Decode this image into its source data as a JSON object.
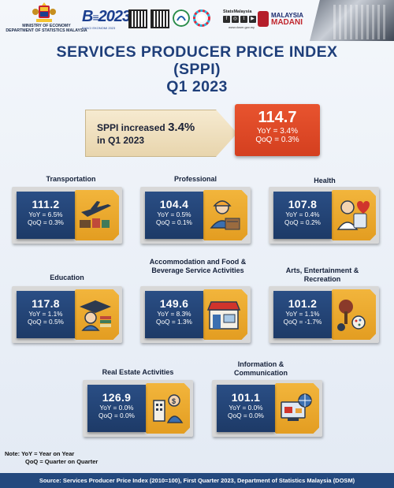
{
  "header": {
    "ministry_line1": "MINISTRY OF ECONOMY",
    "ministry_line2": "DEPARTMENT OF STATISTICS MALAYSIA",
    "banci_label": "2023",
    "banci_sub": "BANCI EKONOMI 2023",
    "statsmalaysia": "StatsMalaysia",
    "stats_url": "www.dosm.gov.my",
    "madani_top": "MALAYSIA",
    "madani_bottom": "MADANI"
  },
  "title": {
    "line1": "SERVICES PRODUCER PRICE INDEX",
    "line2": "(SPPI)",
    "line3": "Q1 2023"
  },
  "headline": {
    "text_prefix": "SPPI increased",
    "text_value": "3.4%",
    "text_suffix": "in Q1 2023",
    "index": "114.7",
    "yoy": "YoY = 3.4%",
    "qoq": "QoQ = 0.3%"
  },
  "cards": [
    {
      "label": "Transportation",
      "value": "111.2",
      "yoy": "YoY = 6.5%",
      "qoq": "QoQ = 0.3%",
      "icon": "transport-icon"
    },
    {
      "label": "Professional",
      "value": "104.4",
      "yoy": "YoY = 0.5%",
      "qoq": "QoQ = 0.1%",
      "icon": "professional-icon"
    },
    {
      "label": "Health",
      "value": "107.8",
      "yoy": "YoY = 0.4%",
      "qoq": "QoQ = 0.2%",
      "icon": "health-icon"
    },
    {
      "label": "Education",
      "value": "117.8",
      "yoy": "YoY = 1.1%",
      "qoq": "QoQ = 0.5%",
      "icon": "education-icon"
    },
    {
      "label": "Accommodation and Food & Beverage Service Activities",
      "value": "149.6",
      "yoy": "YoY = 8.3%",
      "qoq": "QoQ = 1.3%",
      "icon": "store-icon"
    },
    {
      "label": "Arts, Entertainment & Recreation",
      "value": "101.2",
      "yoy": "YoY = 1.1%",
      "qoq": "QoQ = -1.7%",
      "icon": "arts-icon"
    },
    {
      "label": "Real Estate Activities",
      "value": "126.9",
      "yoy": "YoY = 0.0%",
      "qoq": "QoQ = 0.0%",
      "icon": "real-estate-icon"
    },
    {
      "label": "Information & Communication",
      "value": "101.1",
      "yoy": "YoY = 0.0%",
      "qoq": "QoQ = 0.0%",
      "icon": "info-comm-icon"
    }
  ],
  "note": {
    "line1": "Note: YoY = Year on Year",
    "line2": "QoQ = Quarter on Quarter"
  },
  "footer": {
    "source": "Source: Services Producer Price Index (2010=100), First Quarter 2023, Department of Statistics Malaysia (DOSM)"
  },
  "colors": {
    "title": "#1f3f7a",
    "card_blue": "#1d3a67",
    "card_gold": "#e39d21",
    "headline_red": "#d43f1f",
    "footer": "#24497e"
  }
}
